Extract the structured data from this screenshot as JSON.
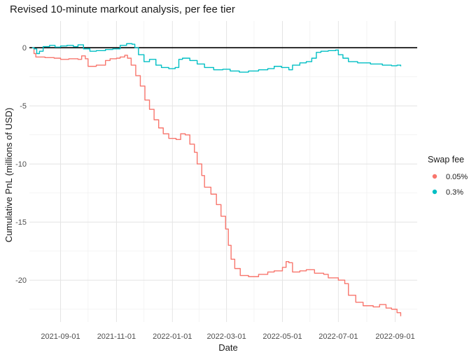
{
  "chart_data": {
    "type": "line",
    "title": "Revised 10-minute markout analysis, per fee tier",
    "xlabel": "Date",
    "ylabel": "Cumulative PnL (millions of USD)",
    "x_ticks": [
      "2021-09-01",
      "2021-11-01",
      "2022-01-01",
      "2022-03-01",
      "2022-05-01",
      "2022-07-01",
      "2022-09-01"
    ],
    "y_ticks": [
      0,
      -5,
      -10,
      -15,
      -20
    ],
    "xlim": [
      "2021-07-29",
      "2022-09-25"
    ],
    "ylim": [
      -23.6,
      2.3
    ],
    "grid": true,
    "reference_line_y": 0,
    "legend": {
      "title": "Swap fee",
      "position": "right"
    },
    "colors": {
      "0.05%": "#F8766D",
      "0.3%": "#00BFC4"
    },
    "series": [
      {
        "name": "0.05%",
        "color": "#F8766D",
        "points": [
          [
            "2021-08-01",
            0
          ],
          [
            "2021-08-03",
            -0.5
          ],
          [
            "2021-08-05",
            -0.8
          ],
          [
            "2021-08-15",
            -0.85
          ],
          [
            "2021-08-25",
            -0.9
          ],
          [
            "2021-09-01",
            -1.0
          ],
          [
            "2021-09-10",
            -0.95
          ],
          [
            "2021-09-20",
            -1.0
          ],
          [
            "2021-09-24",
            -0.7
          ],
          [
            "2021-09-28",
            -0.95
          ],
          [
            "2021-10-01",
            -1.6
          ],
          [
            "2021-10-10",
            -1.5
          ],
          [
            "2021-10-20",
            -1.1
          ],
          [
            "2021-10-25",
            -0.95
          ],
          [
            "2021-11-01",
            -0.9
          ],
          [
            "2021-11-05",
            -0.8
          ],
          [
            "2021-11-10",
            -0.65
          ],
          [
            "2021-11-13",
            -0.9
          ],
          [
            "2021-11-17",
            -1.5
          ],
          [
            "2021-11-22",
            -2.4
          ],
          [
            "2021-11-27",
            -3.3
          ],
          [
            "2021-12-02",
            -4.5
          ],
          [
            "2021-12-07",
            -5.3
          ],
          [
            "2021-12-12",
            -6.2
          ],
          [
            "2021-12-17",
            -6.9
          ],
          [
            "2021-12-22",
            -7.4
          ],
          [
            "2021-12-28",
            -7.8
          ],
          [
            "2022-01-05",
            -7.9
          ],
          [
            "2022-01-10",
            -7.4
          ],
          [
            "2022-01-15",
            -7.5
          ],
          [
            "2022-01-20",
            -8.3
          ],
          [
            "2022-01-25",
            -9.0
          ],
          [
            "2022-01-28",
            -10.0
          ],
          [
            "2022-02-02",
            -11.0
          ],
          [
            "2022-02-05",
            -12.0
          ],
          [
            "2022-02-12",
            -12.6
          ],
          [
            "2022-02-18",
            -13.5
          ],
          [
            "2022-02-23",
            -14.5
          ],
          [
            "2022-02-28",
            -15.6
          ],
          [
            "2022-03-03",
            -17.0
          ],
          [
            "2022-03-06",
            -18.2
          ],
          [
            "2022-03-10",
            -19.0
          ],
          [
            "2022-03-16",
            -19.6
          ],
          [
            "2022-03-25",
            -19.7
          ],
          [
            "2022-04-05",
            -19.5
          ],
          [
            "2022-04-15",
            -19.3
          ],
          [
            "2022-04-22",
            -19.2
          ],
          [
            "2022-05-01",
            -18.9
          ],
          [
            "2022-05-05",
            -18.4
          ],
          [
            "2022-05-08",
            -18.5
          ],
          [
            "2022-05-12",
            -19.3
          ],
          [
            "2022-05-20",
            -19.2
          ],
          [
            "2022-05-27",
            -19.1
          ],
          [
            "2022-06-05",
            -19.4
          ],
          [
            "2022-06-15",
            -19.5
          ],
          [
            "2022-06-20",
            -19.8
          ],
          [
            "2022-07-01",
            -20.0
          ],
          [
            "2022-07-08",
            -20.3
          ],
          [
            "2022-07-12",
            -21.3
          ],
          [
            "2022-07-20",
            -21.9
          ],
          [
            "2022-07-28",
            -22.2
          ],
          [
            "2022-08-08",
            -22.3
          ],
          [
            "2022-08-15",
            -22.1
          ],
          [
            "2022-08-22",
            -22.4
          ],
          [
            "2022-08-28",
            -22.5
          ],
          [
            "2022-09-03",
            -22.8
          ],
          [
            "2022-09-07",
            -23.1
          ]
        ]
      },
      {
        "name": "0.3%",
        "color": "#00BFC4",
        "points": [
          [
            "2021-08-01",
            0
          ],
          [
            "2021-08-03",
            -0.1
          ],
          [
            "2021-08-06",
            -0.5
          ],
          [
            "2021-08-09",
            -0.3
          ],
          [
            "2021-08-13",
            0.1
          ],
          [
            "2021-08-20",
            0.2
          ],
          [
            "2021-08-26",
            0.05
          ],
          [
            "2021-09-01",
            0.15
          ],
          [
            "2021-09-08",
            0.2
          ],
          [
            "2021-09-15",
            0.1
          ],
          [
            "2021-09-20",
            0.25
          ],
          [
            "2021-09-26",
            -0.1
          ],
          [
            "2021-10-03",
            -0.3
          ],
          [
            "2021-10-10",
            -0.25
          ],
          [
            "2021-10-20",
            -0.15
          ],
          [
            "2021-10-28",
            -0.1
          ],
          [
            "2021-11-05",
            0.2
          ],
          [
            "2021-11-12",
            0.35
          ],
          [
            "2021-11-18",
            0.3
          ],
          [
            "2021-11-21",
            0.0
          ],
          [
            "2021-11-25",
            -0.6
          ],
          [
            "2021-12-01",
            -1.2
          ],
          [
            "2021-12-07",
            -1.0
          ],
          [
            "2021-12-14",
            -1.5
          ],
          [
            "2021-12-20",
            -1.7
          ],
          [
            "2021-12-28",
            -1.8
          ],
          [
            "2022-01-04",
            -1.7
          ],
          [
            "2022-01-08",
            -1.0
          ],
          [
            "2022-01-12",
            -0.9
          ],
          [
            "2022-01-20",
            -1.1
          ],
          [
            "2022-01-28",
            -1.4
          ],
          [
            "2022-02-05",
            -1.7
          ],
          [
            "2022-02-15",
            -1.9
          ],
          [
            "2022-02-25",
            -1.85
          ],
          [
            "2022-03-05",
            -2.0
          ],
          [
            "2022-03-15",
            -2.1
          ],
          [
            "2022-03-25",
            -2.0
          ],
          [
            "2022-04-05",
            -1.9
          ],
          [
            "2022-04-15",
            -1.8
          ],
          [
            "2022-04-22",
            -1.6
          ],
          [
            "2022-04-30",
            -1.7
          ],
          [
            "2022-05-08",
            -1.9
          ],
          [
            "2022-05-12",
            -1.5
          ],
          [
            "2022-05-20",
            -1.3
          ],
          [
            "2022-05-27",
            -1.2
          ],
          [
            "2022-06-02",
            -0.9
          ],
          [
            "2022-06-07",
            -0.4
          ],
          [
            "2022-06-12",
            -0.3
          ],
          [
            "2022-06-20",
            -0.25
          ],
          [
            "2022-06-28",
            -0.2
          ],
          [
            "2022-07-01",
            -0.6
          ],
          [
            "2022-07-06",
            -0.9
          ],
          [
            "2022-07-12",
            -1.2
          ],
          [
            "2022-07-22",
            -1.3
          ],
          [
            "2022-08-05",
            -1.4
          ],
          [
            "2022-08-18",
            -1.5
          ],
          [
            "2022-08-28",
            -1.55
          ],
          [
            "2022-09-03",
            -1.5
          ],
          [
            "2022-09-07",
            -1.6
          ]
        ]
      }
    ]
  }
}
